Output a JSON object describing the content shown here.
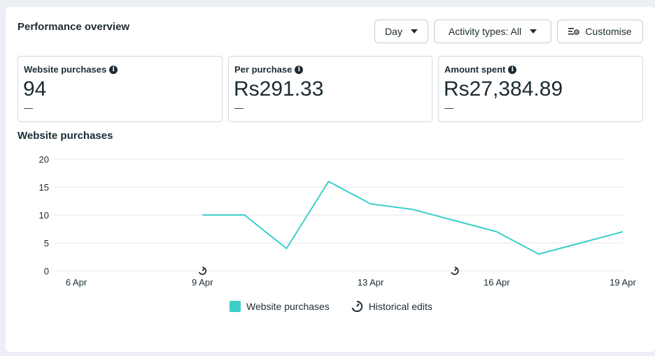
{
  "header": {
    "title": "Performance overview"
  },
  "toolbar": {
    "day_label": "Day",
    "activity_label": "Activity types: All",
    "customise_label": "Customise"
  },
  "metrics": [
    {
      "label": "Website purchases",
      "value": "94",
      "delta": "—"
    },
    {
      "label": "Per purchase",
      "value": "Rs291.33",
      "delta": "—"
    },
    {
      "label": "Amount spent",
      "value": "Rs27,384.89",
      "delta": "—"
    }
  ],
  "chart_section": {
    "title": "Website purchases"
  },
  "legend": {
    "series_label": "Website purchases",
    "edits_label": "Historical edits"
  },
  "colors": {
    "series": "#3ccfc9",
    "grid": "#e3e5e8"
  },
  "chart_data": {
    "type": "line",
    "ylim": [
      0,
      20
    ],
    "yticks": [
      0,
      5,
      10,
      15,
      20
    ],
    "xticks": [
      "6 Apr",
      "9 Apr",
      "13 Apr",
      "16 Apr",
      "19 Apr"
    ],
    "x": [
      "6 Apr",
      "7 Apr",
      "8 Apr",
      "9 Apr",
      "10 Apr",
      "11 Apr",
      "12 Apr",
      "13 Apr",
      "14 Apr",
      "15 Apr",
      "16 Apr",
      "17 Apr",
      "18 Apr",
      "19 Apr"
    ],
    "series": [
      {
        "name": "Website purchases",
        "values": [
          null,
          null,
          null,
          10,
          10,
          4,
          16,
          12,
          11,
          9,
          7,
          3,
          5,
          7
        ]
      }
    ],
    "historical_edits": [
      "9 Apr",
      "15 Apr"
    ],
    "grid": true,
    "legend": "bottom-center"
  }
}
